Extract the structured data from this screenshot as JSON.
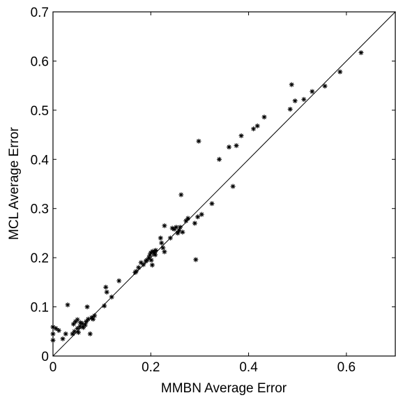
{
  "chart_data": {
    "type": "scatter",
    "title": "",
    "xlabel": "MMBN Average Error",
    "ylabel": "MCL Average Error",
    "xlim": [
      0,
      0.7
    ],
    "ylim": [
      0,
      0.7
    ],
    "xticks": [
      0,
      0.2,
      0.4,
      0.6
    ],
    "xtick_labels": [
      "0",
      "0.2",
      "0.4",
      "0.6"
    ],
    "yticks": [
      0,
      0.1,
      0.2,
      0.3,
      0.4,
      0.5,
      0.6,
      0.7
    ],
    "ytick_labels": [
      "0",
      "0.1",
      "0.2",
      "0.3",
      "0.4",
      "0.5",
      "0.6",
      "0.7"
    ],
    "grid": false,
    "marker": "asterisk",
    "colors": {
      "marker": "#000000",
      "line": "#000000",
      "axes": "#000000"
    },
    "reference_line": {
      "x": [
        0,
        0.7
      ],
      "y": [
        0,
        0.7
      ]
    },
    "series": [
      {
        "points": [
          [
            0.0,
            0.059
          ],
          [
            0.0,
            0.045
          ],
          [
            0.0,
            0.032
          ],
          [
            0.006,
            0.056
          ],
          [
            0.012,
            0.052
          ],
          [
            0.02,
            0.035
          ],
          [
            0.026,
            0.045
          ],
          [
            0.03,
            0.104
          ],
          [
            0.04,
            0.045
          ],
          [
            0.042,
            0.065
          ],
          [
            0.044,
            0.05
          ],
          [
            0.046,
            0.07
          ],
          [
            0.05,
            0.056
          ],
          [
            0.05,
            0.074
          ],
          [
            0.052,
            0.048
          ],
          [
            0.055,
            0.06
          ],
          [
            0.056,
            0.068
          ],
          [
            0.06,
            0.066
          ],
          [
            0.062,
            0.058
          ],
          [
            0.066,
            0.063
          ],
          [
            0.068,
            0.07
          ],
          [
            0.07,
            0.1
          ],
          [
            0.072,
            0.075
          ],
          [
            0.076,
            0.045
          ],
          [
            0.079,
            0.078
          ],
          [
            0.082,
            0.075
          ],
          [
            0.085,
            0.082
          ],
          [
            0.105,
            0.102
          ],
          [
            0.108,
            0.14
          ],
          [
            0.11,
            0.13
          ],
          [
            0.12,
            0.12
          ],
          [
            0.135,
            0.153
          ],
          [
            0.168,
            0.17
          ],
          [
            0.17,
            0.172
          ],
          [
            0.175,
            0.18
          ],
          [
            0.18,
            0.19
          ],
          [
            0.185,
            0.186
          ],
          [
            0.19,
            0.193
          ],
          [
            0.192,
            0.195
          ],
          [
            0.196,
            0.2
          ],
          [
            0.198,
            0.205
          ],
          [
            0.2,
            0.21
          ],
          [
            0.201,
            0.195
          ],
          [
            0.203,
            0.185
          ],
          [
            0.204,
            0.213
          ],
          [
            0.207,
            0.21
          ],
          [
            0.209,
            0.206
          ],
          [
            0.21,
            0.215
          ],
          [
            0.22,
            0.24
          ],
          [
            0.222,
            0.23
          ],
          [
            0.225,
            0.22
          ],
          [
            0.228,
            0.212
          ],
          [
            0.228,
            0.265
          ],
          [
            0.24,
            0.24
          ],
          [
            0.244,
            0.26
          ],
          [
            0.248,
            0.258
          ],
          [
            0.252,
            0.262
          ],
          [
            0.255,
            0.25
          ],
          [
            0.258,
            0.255
          ],
          [
            0.26,
            0.262
          ],
          [
            0.262,
            0.328
          ],
          [
            0.265,
            0.252
          ],
          [
            0.272,
            0.275
          ],
          [
            0.276,
            0.28
          ],
          [
            0.29,
            0.27
          ],
          [
            0.292,
            0.196
          ],
          [
            0.296,
            0.283
          ],
          [
            0.298,
            0.437
          ],
          [
            0.304,
            0.288
          ],
          [
            0.325,
            0.31
          ],
          [
            0.34,
            0.4
          ],
          [
            0.36,
            0.425
          ],
          [
            0.368,
            0.345
          ],
          [
            0.375,
            0.428
          ],
          [
            0.385,
            0.448
          ],
          [
            0.41,
            0.462
          ],
          [
            0.418,
            0.468
          ],
          [
            0.432,
            0.486
          ],
          [
            0.485,
            0.502
          ],
          [
            0.488,
            0.552
          ],
          [
            0.495,
            0.519
          ],
          [
            0.513,
            0.522
          ],
          [
            0.53,
            0.538
          ],
          [
            0.556,
            0.549
          ],
          [
            0.587,
            0.578
          ],
          [
            0.63,
            0.617
          ]
        ]
      }
    ]
  }
}
